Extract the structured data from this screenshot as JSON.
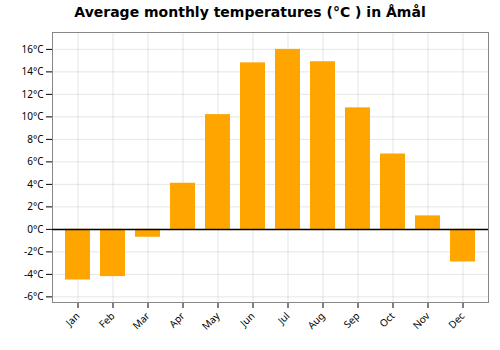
{
  "chart_data": {
    "type": "bar",
    "title": "Average monthly temperatures (°C ) in Åmål",
    "categories": [
      "Jan",
      "Feb",
      "Mar",
      "Apr",
      "May",
      "Jun",
      "Jul",
      "Aug",
      "Sep",
      "Oct",
      "Nov",
      "Dec"
    ],
    "values": [
      -4.5,
      -4.2,
      -0.7,
      4.1,
      10.2,
      14.8,
      16.0,
      14.9,
      10.8,
      6.7,
      1.2,
      -2.9
    ],
    "color": "#FFA500",
    "ylim": [
      -6.5,
      17.5
    ],
    "yticks": [
      {
        "value": -6,
        "label": "-6°C"
      },
      {
        "value": -4,
        "label": "-4°C"
      },
      {
        "value": -2,
        "label": "-2°C"
      },
      {
        "value": 0,
        "label": "0°C"
      },
      {
        "value": 2,
        "label": "2°C"
      },
      {
        "value": 4,
        "label": "4°C"
      },
      {
        "value": 6,
        "label": "6°C"
      },
      {
        "value": 8,
        "label": "8°C"
      },
      {
        "value": 10,
        "label": "10°C"
      },
      {
        "value": 12,
        "label": "12°C"
      },
      {
        "value": 14,
        "label": "14°C"
      },
      {
        "value": 16,
        "label": "16°C"
      }
    ],
    "grid": true
  }
}
